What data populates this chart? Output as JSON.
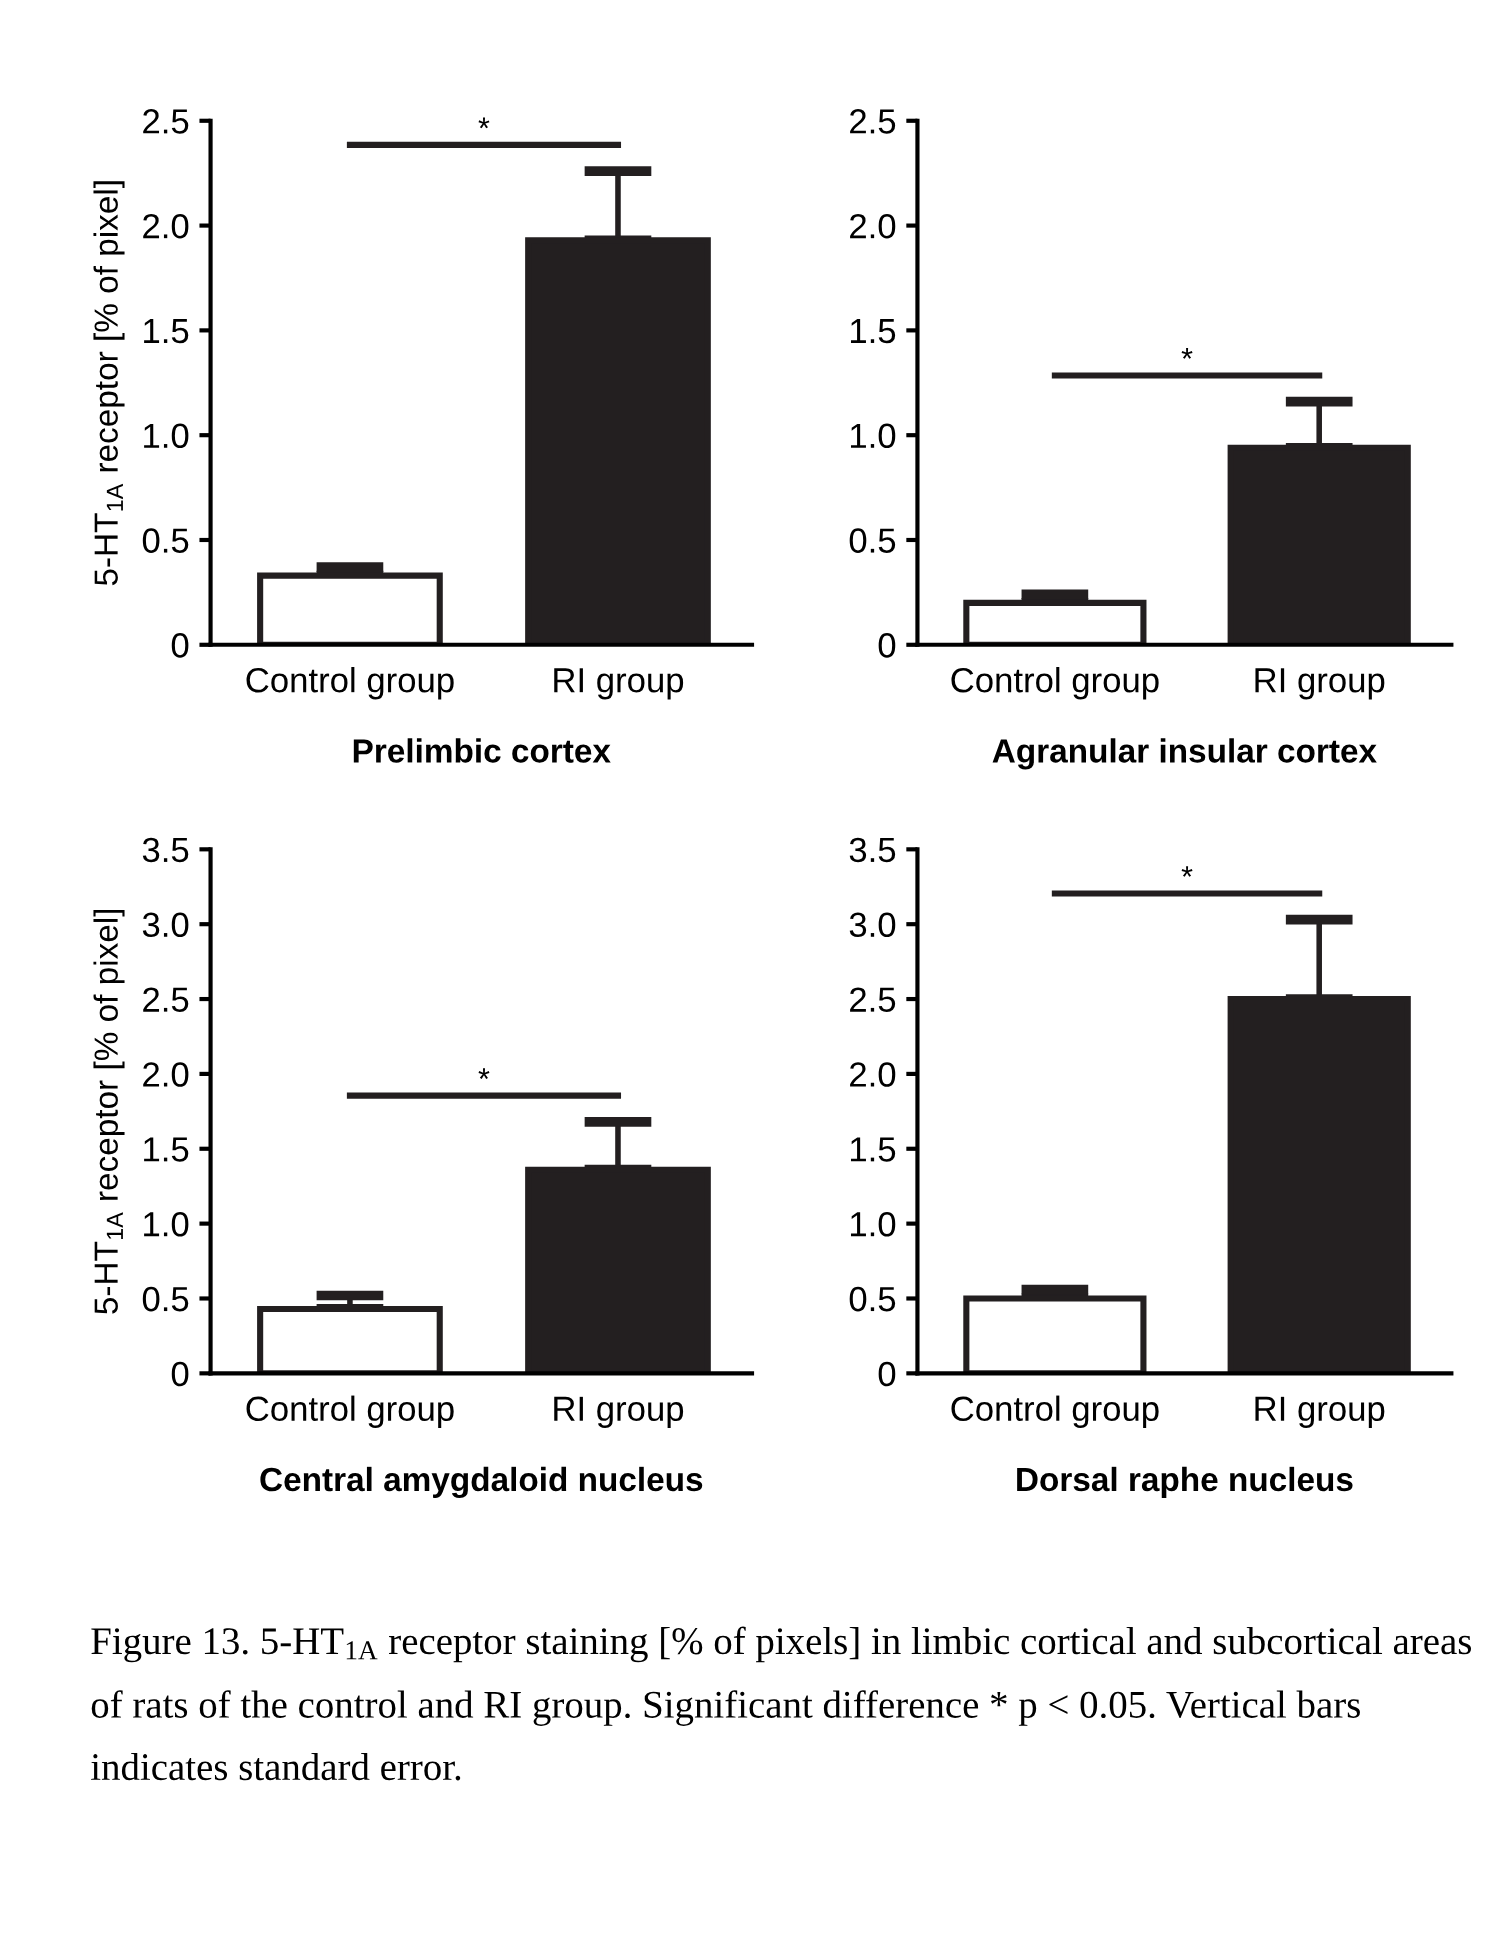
{
  "chart_data": [
    {
      "type": "bar",
      "ylabel": "5-HT$_{1A}$ receptor [% of pixel]",
      "xlabel": "Prelimbic cortex",
      "categories": [
        "Control group",
        "RI group"
      ],
      "values": [
        0.33,
        1.93
      ],
      "errors": [
        [
          0.33,
          0.37
        ],
        [
          1.93,
          2.26
        ]
      ],
      "colors": [
        "#ffffff",
        "#231f20"
      ],
      "ylim": [
        0,
        2.5
      ],
      "yticks": [
        0,
        0.5,
        {
          "value": 1,
          "label": "1.0"
        },
        1.5,
        {
          "value": 2,
          "label": "2.0"
        },
        2.5
      ],
      "annotations": [
        "*"
      ]
    },
    {
      "type": "bar",
      "xlabel": "Agranular insular cortex",
      "categories": [
        "Control group",
        "RI group"
      ],
      "values": [
        0.2,
        0.94
      ],
      "errors": [
        [
          0.2,
          0.24
        ],
        [
          0.94,
          1.16
        ]
      ],
      "colors": [
        "#ffffff",
        "#231f20"
      ],
      "ylim": [
        0,
        2.5
      ],
      "yticks": [
        0,
        0.5,
        {
          "value": 1,
          "label": "1.0"
        },
        1.5,
        {
          "value": 2,
          "label": "2.0"
        },
        2.5
      ],
      "annotations": [
        "*"
      ]
    },
    {
      "type": "bar",
      "ylabel": "5-HT$_{1A}$ receptor [% of pixel]",
      "xlabel": "Central amygdaloid nucleus",
      "categories": [
        "Control group",
        "RI group"
      ],
      "values": [
        0.43,
        1.36
      ],
      "errors": [
        [
          0.43,
          0.52
        ],
        [
          1.36,
          1.68
        ]
      ],
      "colors": [
        "#ffffff",
        "#231f20"
      ],
      "ylim": [
        0,
        3.5
      ],
      "yticks": [
        0,
        0.5,
        {
          "value": 1,
          "label": "1.0"
        },
        1.5,
        {
          "value": 2,
          "label": "2.0"
        },
        2.5,
        {
          "value": 3,
          "label": "3.0"
        },
        3.5
      ],
      "annotations": [
        "*"
      ]
    },
    {
      "type": "bar",
      "xlabel": "Dorsal raphe nucleus",
      "categories": [
        "Control group",
        "RI group"
      ],
      "values": [
        0.5,
        2.5
      ],
      "errors": [
        [
          0.5,
          0.56
        ],
        [
          2.5,
          3.03
        ]
      ],
      "colors": [
        "#ffffff",
        "#231f20"
      ],
      "ylim": [
        0,
        3.5
      ],
      "yticks": [
        0,
        0.5,
        {
          "value": 1,
          "label": "1.0"
        },
        1.5,
        {
          "value": 2,
          "label": "2.0"
        },
        2.5,
        {
          "value": 3,
          "label": "3.0"
        },
        3.5
      ],
      "annotations": [
        "*",
        "Figure 13. 5-HT$_{1A}$ receptor staining [% of pixels] in limbic cortical and subcortical areas of rats of the control and RI group. Significant difference * p < 0.05. Vertical bars indicates standard error."
      ]
    }
  ]
}
